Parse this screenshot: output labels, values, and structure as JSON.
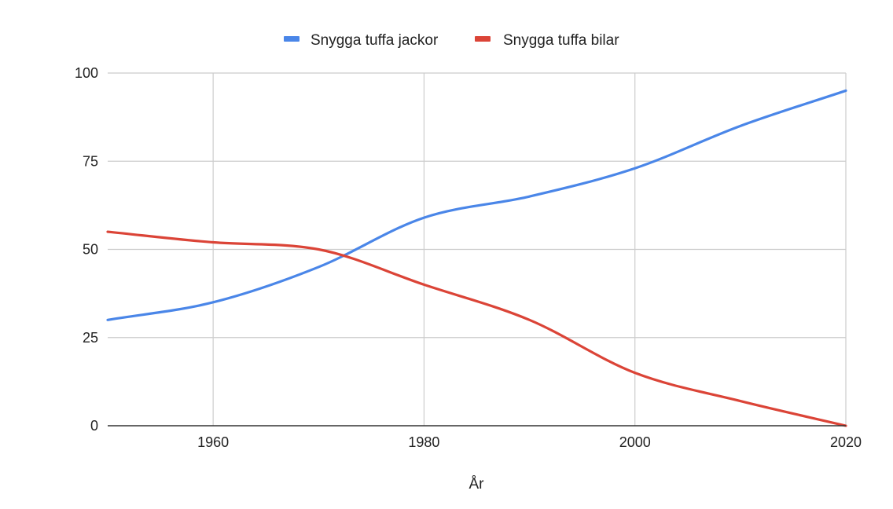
{
  "chart_data": {
    "type": "line",
    "title": "",
    "xlabel": "År",
    "ylabel": "",
    "xlim": [
      1950,
      2020
    ],
    "ylim": [
      0,
      100
    ],
    "xticks": [
      1960,
      1980,
      2000,
      2020
    ],
    "yticks": [
      0,
      25,
      50,
      75,
      100
    ],
    "grid": true,
    "legend_position": "top",
    "series": [
      {
        "name": "Snygga tuffa jackor",
        "color": "#4a86e8",
        "points": [
          {
            "x": 1950,
            "y": 30
          },
          {
            "x": 1960,
            "y": 35
          },
          {
            "x": 1970,
            "y": 45
          },
          {
            "x": 1980,
            "y": 59
          },
          {
            "x": 1990,
            "y": 65
          },
          {
            "x": 2000,
            "y": 73
          },
          {
            "x": 2010,
            "y": 85
          },
          {
            "x": 2020,
            "y": 95
          }
        ]
      },
      {
        "name": "Snygga tuffa bilar",
        "color": "#db4437",
        "points": [
          {
            "x": 1950,
            "y": 55
          },
          {
            "x": 1960,
            "y": 52
          },
          {
            "x": 1970,
            "y": 50
          },
          {
            "x": 1980,
            "y": 40
          },
          {
            "x": 1990,
            "y": 30
          },
          {
            "x": 2000,
            "y": 15
          },
          {
            "x": 2010,
            "y": 7
          },
          {
            "x": 2020,
            "y": 0
          }
        ]
      }
    ]
  }
}
